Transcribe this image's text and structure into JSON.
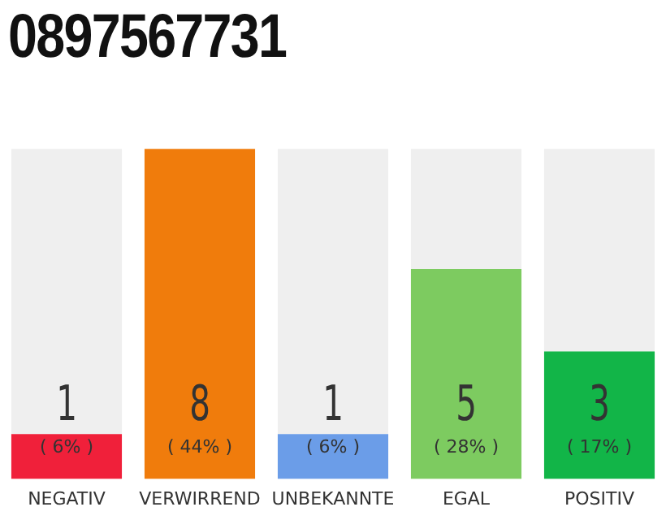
{
  "chart_data": {
    "type": "bar",
    "title": "0897567731",
    "categories": [
      "NEGATIV",
      "VERWIRREND",
      "UNBEKANNTE",
      "EGAL",
      "POSITIV"
    ],
    "stacked": true,
    "series": [
      {
        "colors": [
          "#f0203a",
          "#f07c0c",
          "#6b9de8",
          "#7dcb60",
          "#12b548"
        ],
        "values": [
          6,
          44,
          6,
          28,
          17
        ],
        "value_labels": [
          "( 6% )",
          "( 44% )",
          "( 6% )",
          "( 28% )",
          "( 17% )"
        ]
      },
      {
        "color": "#efefef",
        "values": [
          38,
          0,
          38,
          16,
          27
        ]
      }
    ],
    "annotations": [
      "1",
      "8",
      "1",
      "5",
      "3"
    ],
    "grid": false,
    "legend": false
  }
}
